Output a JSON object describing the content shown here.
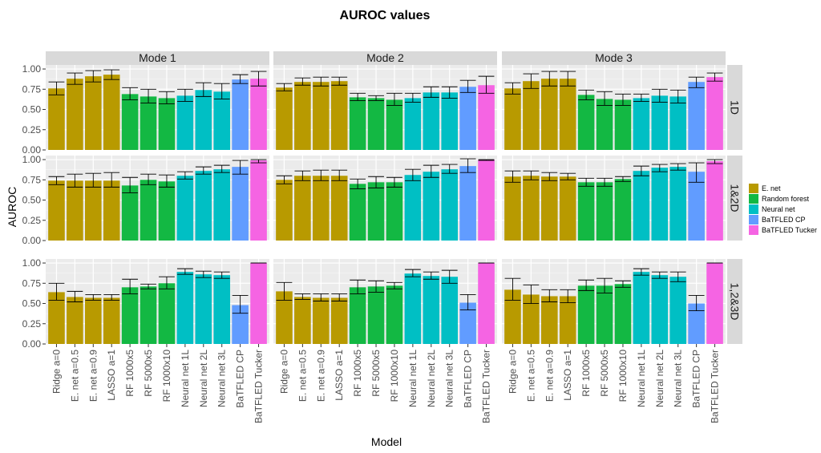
{
  "chart_data": {
    "type": "bar",
    "title": "AUROC values",
    "xlabel": "Model",
    "ylabel": "AUROC",
    "ylim": [
      0,
      1.05
    ],
    "yticks": [
      0.0,
      0.25,
      0.5,
      0.75,
      1.0
    ],
    "ytick_labels": [
      "0.00",
      "0.25",
      "0.50",
      "0.75",
      "1.00"
    ],
    "grid": true,
    "legend_position": "right",
    "columns": [
      "Mode 1",
      "Mode 2",
      "Mode 3"
    ],
    "rows": [
      "1D",
      "1&2D",
      "1,2&3D"
    ],
    "categories": [
      "Ridge a=0",
      "E. net a=0.5",
      "E. net a=0.9",
      "LASSO a=1",
      "RF 1000x5",
      "RF 5000x5",
      "RF 1000x10",
      "Neural net 1L",
      "Neural net 2L",
      "Neural net 3L",
      "BaTFLED CP",
      "BaTFLED Tucker"
    ],
    "category_groups": [
      0,
      0,
      0,
      0,
      1,
      1,
      1,
      2,
      2,
      2,
      3,
      4
    ],
    "groups": [
      {
        "name": "E. net",
        "color": "#B89A00"
      },
      {
        "name": "Random forest",
        "color": "#13B843"
      },
      {
        "name": "Neural net",
        "color": "#00BFC4"
      },
      {
        "name": "BaTFLED CP",
        "color": "#619CFF"
      },
      {
        "name": "BaTFLED Tucker",
        "color": "#F564E3"
      }
    ],
    "panels": [
      {
        "mode": "Mode 1",
        "row": "1D",
        "values": [
          0.76,
          0.88,
          0.91,
          0.93,
          0.69,
          0.66,
          0.64,
          0.67,
          0.74,
          0.72,
          0.87,
          0.88
        ],
        "lower": [
          0.68,
          0.81,
          0.84,
          0.87,
          0.62,
          0.58,
          0.57,
          0.6,
          0.66,
          0.63,
          0.82,
          0.79
        ],
        "upper": [
          0.84,
          0.95,
          0.98,
          0.99,
          0.77,
          0.75,
          0.72,
          0.75,
          0.83,
          0.82,
          0.93,
          0.97
        ]
      },
      {
        "mode": "Mode 2",
        "row": "1D",
        "values": [
          0.77,
          0.84,
          0.84,
          0.85,
          0.65,
          0.64,
          0.62,
          0.64,
          0.71,
          0.71,
          0.78,
          0.8
        ],
        "lower": [
          0.73,
          0.8,
          0.79,
          0.8,
          0.61,
          0.61,
          0.55,
          0.59,
          0.65,
          0.64,
          0.71,
          0.7
        ],
        "upper": [
          0.82,
          0.89,
          0.9,
          0.9,
          0.7,
          0.67,
          0.7,
          0.7,
          0.78,
          0.78,
          0.86,
          0.91
        ]
      },
      {
        "mode": "Mode 3",
        "row": "1D",
        "values": [
          0.76,
          0.85,
          0.88,
          0.88,
          0.68,
          0.63,
          0.62,
          0.64,
          0.67,
          0.66,
          0.84,
          0.9
        ],
        "lower": [
          0.69,
          0.76,
          0.79,
          0.79,
          0.62,
          0.55,
          0.55,
          0.6,
          0.59,
          0.58,
          0.77,
          0.85
        ],
        "upper": [
          0.83,
          0.94,
          0.97,
          0.97,
          0.74,
          0.72,
          0.69,
          0.69,
          0.75,
          0.74,
          0.9,
          0.95
        ]
      },
      {
        "mode": "Mode 1",
        "row": "1&2D",
        "values": [
          0.74,
          0.74,
          0.74,
          0.74,
          0.68,
          0.75,
          0.73,
          0.8,
          0.86,
          0.88,
          0.91,
          0.99
        ],
        "lower": [
          0.69,
          0.66,
          0.66,
          0.66,
          0.59,
          0.69,
          0.66,
          0.76,
          0.82,
          0.84,
          0.82,
          0.96
        ],
        "upper": [
          0.79,
          0.82,
          0.83,
          0.84,
          0.78,
          0.82,
          0.81,
          0.85,
          0.91,
          0.93,
          0.99,
          1.0
        ]
      },
      {
        "mode": "Mode 2",
        "row": "1&2D",
        "values": [
          0.75,
          0.8,
          0.8,
          0.8,
          0.7,
          0.72,
          0.72,
          0.81,
          0.85,
          0.88,
          0.92,
          1.0
        ],
        "lower": [
          0.7,
          0.74,
          0.74,
          0.74,
          0.64,
          0.65,
          0.66,
          0.74,
          0.78,
          0.83,
          0.84,
          0.99
        ],
        "upper": [
          0.8,
          0.86,
          0.87,
          0.87,
          0.76,
          0.79,
          0.78,
          0.88,
          0.93,
          0.94,
          1.01,
          1.0
        ]
      },
      {
        "mode": "Mode 3",
        "row": "1&2D",
        "values": [
          0.79,
          0.8,
          0.79,
          0.79,
          0.72,
          0.72,
          0.76,
          0.86,
          0.9,
          0.91,
          0.85,
          0.98
        ],
        "lower": [
          0.72,
          0.75,
          0.74,
          0.75,
          0.67,
          0.67,
          0.73,
          0.8,
          0.85,
          0.87,
          0.72,
          0.95
        ],
        "upper": [
          0.86,
          0.86,
          0.84,
          0.83,
          0.77,
          0.77,
          0.79,
          0.92,
          0.94,
          0.95,
          0.96,
          1.0
        ]
      },
      {
        "mode": "Mode 1",
        "row": "1,2&3D",
        "values": [
          0.64,
          0.58,
          0.57,
          0.57,
          0.7,
          0.71,
          0.75,
          0.89,
          0.86,
          0.85,
          0.48,
          1.0
        ],
        "lower": [
          0.54,
          0.52,
          0.54,
          0.54,
          0.62,
          0.68,
          0.68,
          0.86,
          0.82,
          0.81,
          0.38,
          1.0
        ],
        "upper": [
          0.75,
          0.65,
          0.61,
          0.61,
          0.8,
          0.74,
          0.83,
          0.93,
          0.9,
          0.89,
          0.6,
          1.0
        ]
      },
      {
        "mode": "Mode 2",
        "row": "1,2&3D",
        "values": [
          0.65,
          0.58,
          0.57,
          0.57,
          0.7,
          0.71,
          0.72,
          0.87,
          0.84,
          0.83,
          0.51,
          1.0
        ],
        "lower": [
          0.54,
          0.55,
          0.53,
          0.53,
          0.62,
          0.64,
          0.68,
          0.83,
          0.8,
          0.75,
          0.42,
          1.0
        ],
        "upper": [
          0.76,
          0.62,
          0.62,
          0.62,
          0.79,
          0.78,
          0.76,
          0.92,
          0.89,
          0.91,
          0.61,
          1.0
        ]
      },
      {
        "mode": "Mode 3",
        "row": "1,2&3D",
        "values": [
          0.67,
          0.61,
          0.59,
          0.59,
          0.72,
          0.72,
          0.74,
          0.89,
          0.85,
          0.83,
          0.5,
          1.0
        ],
        "lower": [
          0.54,
          0.5,
          0.52,
          0.51,
          0.66,
          0.63,
          0.7,
          0.85,
          0.81,
          0.77,
          0.41,
          1.0
        ],
        "upper": [
          0.81,
          0.73,
          0.67,
          0.67,
          0.79,
          0.81,
          0.78,
          0.93,
          0.89,
          0.89,
          0.6,
          1.0
        ]
      }
    ]
  }
}
